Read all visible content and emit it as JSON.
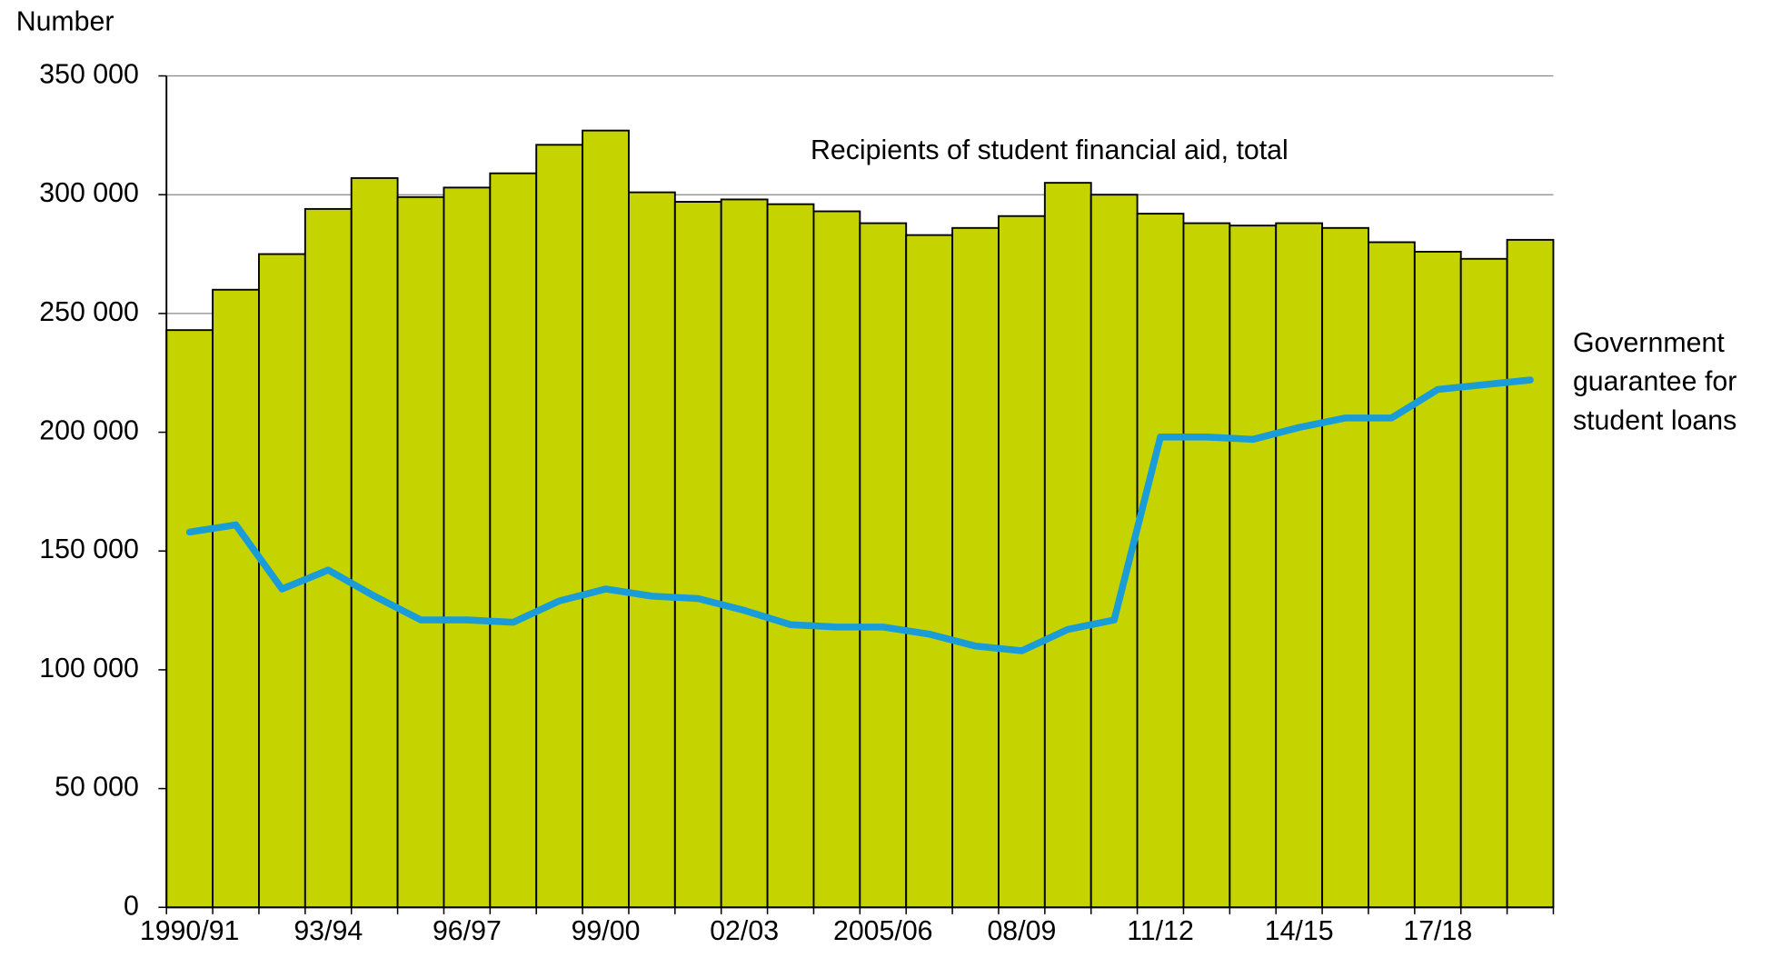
{
  "chart_data": {
    "type": "bar",
    "y_label": "Number",
    "categories": [
      "1990/91",
      null,
      null,
      "93/94",
      null,
      null,
      "96/97",
      null,
      null,
      "99/00",
      null,
      null,
      "02/03",
      null,
      null,
      "2005/06",
      null,
      null,
      "08/09",
      null,
      null,
      "11/12",
      null,
      null,
      "14/15",
      null,
      null,
      "17/18",
      null,
      null
    ],
    "series": [
      {
        "name": "Recipients of student financial aid, total",
        "type": "bar",
        "color": "#c5d400",
        "values": [
          243000,
          260000,
          275000,
          294000,
          307000,
          299000,
          303000,
          309000,
          321000,
          327000,
          301000,
          297000,
          298000,
          296000,
          293000,
          288000,
          283000,
          286000,
          291000,
          305000,
          300000,
          292000,
          288000,
          287000,
          288000,
          286000,
          280000,
          276000,
          273000,
          281000
        ]
      },
      {
        "name": "Government guarantee for student loans",
        "type": "line",
        "color": "#1a9cd8",
        "values": [
          158000,
          161000,
          134000,
          142000,
          131000,
          121000,
          121000,
          120000,
          129000,
          134000,
          131000,
          130000,
          125000,
          119000,
          118000,
          118000,
          115000,
          110000,
          108000,
          117000,
          121000,
          198000,
          198000,
          197000,
          202000,
          206000,
          206000,
          218000,
          220000,
          222000
        ]
      }
    ],
    "ylim": [
      0,
      350000
    ],
    "yticks": [
      0,
      {
        "value": 50000,
        "label": "50 000"
      },
      {
        "value": 100000,
        "label": "100 000"
      },
      {
        "value": 150000,
        "label": "150 000"
      },
      {
        "value": 200000,
        "label": "200 000"
      },
      {
        "value": 250000,
        "label": "250 000"
      },
      {
        "value": 300000,
        "label": "300 000"
      },
      {
        "value": 350000,
        "label": "350 000"
      }
    ],
    "grid": true
  }
}
